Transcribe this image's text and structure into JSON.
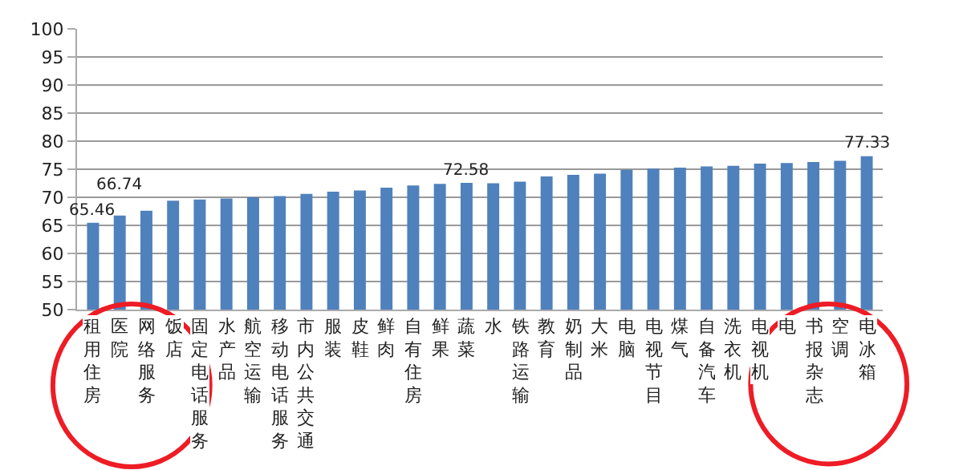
{
  "chart_data": {
    "type": "bar",
    "categories": [
      "租用住房",
      "医院",
      "网络服务",
      "饭店",
      "固定电话服务",
      "水产品",
      "航空运输",
      "移动电话服务",
      "市内公共交通",
      "服装",
      "皮鞋",
      "鲜肉",
      "自有住房",
      "鲜果",
      "蔬菜",
      "水",
      "铁路运输",
      "教育",
      "奶制品",
      "大米",
      "电脑",
      "电视节目",
      "煤气",
      "自备汽车",
      "洗衣机",
      "电视机",
      "电",
      "书报杂志",
      "空调",
      "电冰箱"
    ],
    "values": [
      65.46,
      66.74,
      67.6,
      69.4,
      69.6,
      69.8,
      70.0,
      70.2,
      70.6,
      71.0,
      71.2,
      71.7,
      72.1,
      72.4,
      72.58,
      72.5,
      72.8,
      73.7,
      74.0,
      74.2,
      74.9,
      75.1,
      75.3,
      75.5,
      75.6,
      76.0,
      76.1,
      76.3,
      76.5,
      77.33
    ],
    "value_labels": [
      "65.46",
      "66.74",
      null,
      null,
      null,
      null,
      null,
      null,
      null,
      null,
      null,
      null,
      null,
      null,
      "72.58",
      null,
      null,
      null,
      null,
      null,
      null,
      null,
      null,
      null,
      null,
      null,
      null,
      null,
      null,
      "77.33"
    ],
    "color": "#4f81bd",
    "ylim": [
      50,
      100
    ],
    "yticks": [
      50,
      55,
      60,
      65,
      70,
      75,
      80,
      85,
      90,
      95,
      100
    ],
    "grid": "y"
  }
}
